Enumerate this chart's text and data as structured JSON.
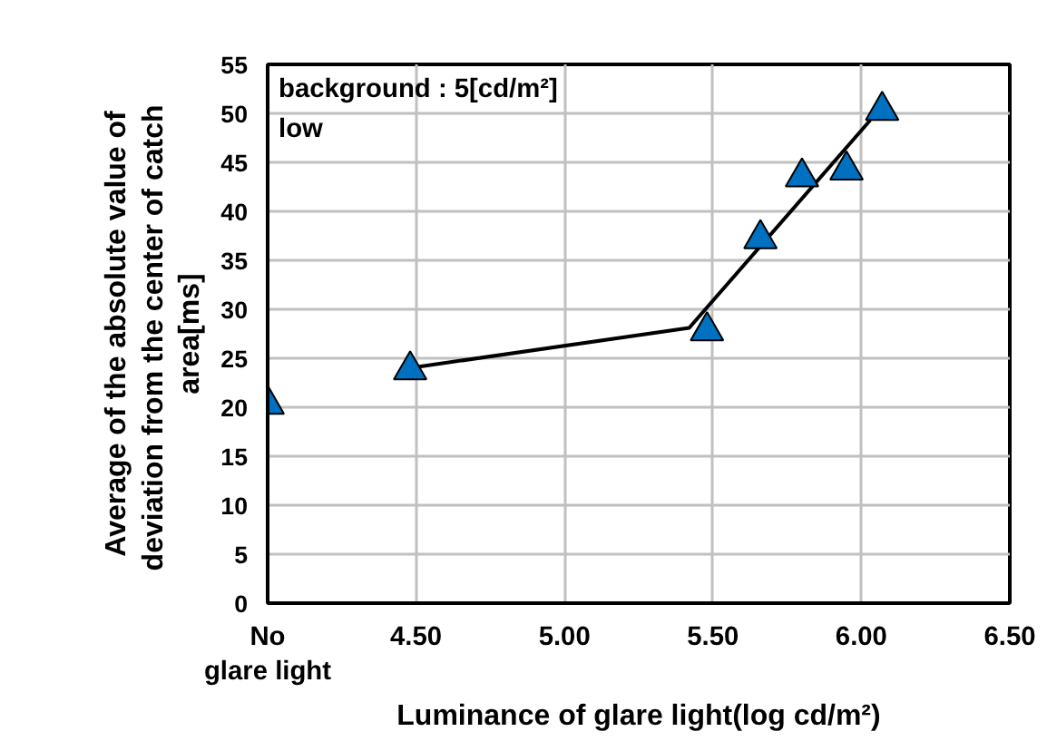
{
  "chart_data": {
    "type": "scatter",
    "xlabel": "Luminance of glare light(log cd/m²)",
    "ylabel": "Average of the absolute value of\ndeviation from the center of  catch\narea[ms]",
    "annotations": [
      "background : 5[cd/m²]",
      "low"
    ],
    "series": [
      {
        "color": "#0070c0",
        "marker": "triangle",
        "x": [
          4.0,
          4.48,
          5.48,
          5.66,
          5.8,
          5.95,
          6.07
        ],
        "values": [
          20.3,
          23.8,
          27.8,
          37.2,
          43.5,
          44.2,
          50.3
        ]
      },
      {
        "type": "line",
        "color": "#000000",
        "marker": "none",
        "line_style": "solid",
        "x": [
          4.5,
          5.42,
          6.03
        ],
        "values": [
          24.1,
          28.1,
          49.3
        ]
      }
    ],
    "xlim": [
      4.0,
      6.5
    ],
    "xticks": [
      {
        "value": 4.0,
        "label": "No\nglare light"
      },
      {
        "value": 4.5,
        "label": "4.50"
      },
      {
        "value": 5.0,
        "label": "5.00"
      },
      {
        "value": 5.5,
        "label": "5.50"
      },
      {
        "value": 6.0,
        "label": "6.00"
      },
      {
        "value": 6.5,
        "label": "6.50"
      }
    ],
    "ylim": [
      0,
      55
    ],
    "yticks": [
      0,
      5,
      10,
      15,
      20,
      25,
      30,
      35,
      40,
      45,
      50,
      55
    ],
    "grid": true
  }
}
